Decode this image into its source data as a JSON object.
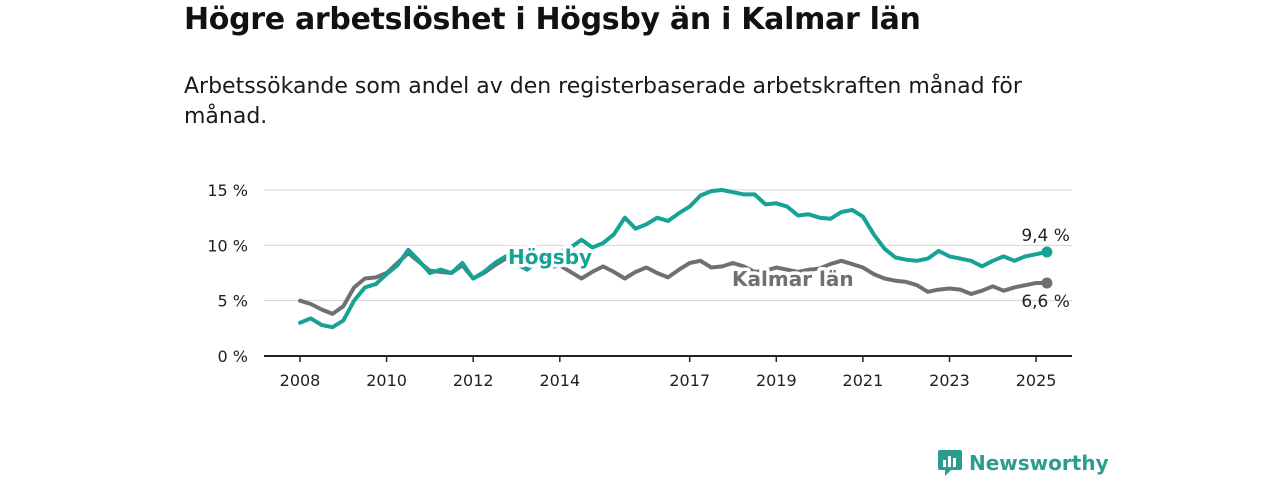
{
  "header": {
    "title": "Högre arbetslöshet i Högsby än i Kalmar län",
    "subtitle": "Arbetssökande som andel av den registerbaserade arbetskraften månad för månad."
  },
  "brand": {
    "label": "Newsworthy",
    "icon": "newsworthy-logo-icon",
    "color": "#2a9d8f"
  },
  "chart_data": {
    "type": "line",
    "xlabel": "",
    "ylabel": "",
    "ylim": [
      0,
      15
    ],
    "xlim": [
      "2008-01",
      "2025-12"
    ],
    "grid": true,
    "y_ticks": [
      "0 %",
      "5 %",
      "10 %",
      "15 %"
    ],
    "x_ticks": [
      "2008",
      "2010",
      "2012",
      "2014",
      "2017",
      "2019",
      "2021",
      "2023",
      "2025"
    ],
    "legend": "inline labels",
    "series": [
      {
        "name": "Högsby",
        "color": "#16a396",
        "end_label": "9,4 %",
        "points": [
          [
            "2008-01",
            3.0
          ],
          [
            "2008-04",
            3.4
          ],
          [
            "2008-07",
            2.8
          ],
          [
            "2008-10",
            2.6
          ],
          [
            "2009-01",
            3.2
          ],
          [
            "2009-04",
            5.0
          ],
          [
            "2009-07",
            6.2
          ],
          [
            "2009-10",
            6.5
          ],
          [
            "2010-01",
            7.4
          ],
          [
            "2010-04",
            8.2
          ],
          [
            "2010-07",
            9.6
          ],
          [
            "2010-10",
            8.6
          ],
          [
            "2011-01",
            7.5
          ],
          [
            "2011-04",
            7.8
          ],
          [
            "2011-07",
            7.5
          ],
          [
            "2011-10",
            8.4
          ],
          [
            "2012-01",
            7.0
          ],
          [
            "2012-04",
            7.6
          ],
          [
            "2012-07",
            8.4
          ],
          [
            "2012-10",
            9.0
          ],
          [
            "2013-01",
            8.3
          ],
          [
            "2013-04",
            7.8
          ],
          [
            "2013-07",
            8.7
          ],
          [
            "2013-10",
            9.0
          ],
          [
            "2014-01",
            9.4
          ],
          [
            "2014-04",
            9.8
          ],
          [
            "2014-07",
            10.5
          ],
          [
            "2014-10",
            9.8
          ],
          [
            "2015-01",
            10.2
          ],
          [
            "2015-04",
            11.0
          ],
          [
            "2015-07",
            12.5
          ],
          [
            "2015-10",
            11.5
          ],
          [
            "2016-01",
            11.9
          ],
          [
            "2016-04",
            12.5
          ],
          [
            "2016-07",
            12.2
          ],
          [
            "2016-10",
            12.9
          ],
          [
            "2017-01",
            13.5
          ],
          [
            "2017-04",
            14.5
          ],
          [
            "2017-07",
            14.9
          ],
          [
            "2017-10",
            15.0
          ],
          [
            "2018-01",
            14.8
          ],
          [
            "2018-04",
            14.6
          ],
          [
            "2018-07",
            14.6
          ],
          [
            "2018-10",
            13.7
          ],
          [
            "2019-01",
            13.8
          ],
          [
            "2019-04",
            13.5
          ],
          [
            "2019-07",
            12.7
          ],
          [
            "2019-10",
            12.8
          ],
          [
            "2020-01",
            12.5
          ],
          [
            "2020-04",
            12.4
          ],
          [
            "2020-07",
            13.0
          ],
          [
            "2020-10",
            13.2
          ],
          [
            "2021-01",
            12.6
          ],
          [
            "2021-04",
            11.0
          ],
          [
            "2021-07",
            9.7
          ],
          [
            "2021-10",
            8.9
          ],
          [
            "2022-01",
            8.7
          ],
          [
            "2022-04",
            8.6
          ],
          [
            "2022-07",
            8.8
          ],
          [
            "2022-10",
            9.5
          ],
          [
            "2023-01",
            9.0
          ],
          [
            "2023-04",
            8.8
          ],
          [
            "2023-07",
            8.6
          ],
          [
            "2023-10",
            8.1
          ],
          [
            "2024-01",
            8.6
          ],
          [
            "2024-04",
            9.0
          ],
          [
            "2024-07",
            8.6
          ],
          [
            "2024-10",
            9.0
          ],
          [
            "2025-01",
            9.2
          ],
          [
            "2025-04",
            9.4
          ]
        ]
      },
      {
        "name": "Kalmar län",
        "color": "#707070",
        "end_label": "6,6 %",
        "points": [
          [
            "2008-01",
            5.0
          ],
          [
            "2008-04",
            4.7
          ],
          [
            "2008-07",
            4.2
          ],
          [
            "2008-10",
            3.8
          ],
          [
            "2009-01",
            4.5
          ],
          [
            "2009-04",
            6.2
          ],
          [
            "2009-07",
            7.0
          ],
          [
            "2009-10",
            7.1
          ],
          [
            "2010-01",
            7.5
          ],
          [
            "2010-04",
            8.4
          ],
          [
            "2010-07",
            9.3
          ],
          [
            "2010-10",
            8.5
          ],
          [
            "2011-01",
            7.7
          ],
          [
            "2011-04",
            7.6
          ],
          [
            "2011-07",
            7.5
          ],
          [
            "2011-10",
            8.2
          ],
          [
            "2012-01",
            7.0
          ],
          [
            "2012-04",
            7.5
          ],
          [
            "2012-07",
            8.2
          ],
          [
            "2012-10",
            8.8
          ],
          [
            "2013-01",
            8.5
          ],
          [
            "2013-04",
            8.0
          ],
          [
            "2013-07",
            8.3
          ],
          [
            "2013-10",
            8.0
          ],
          [
            "2014-01",
            8.2
          ],
          [
            "2014-04",
            7.6
          ],
          [
            "2014-07",
            7.0
          ],
          [
            "2014-10",
            7.6
          ],
          [
            "2015-01",
            8.1
          ],
          [
            "2015-04",
            7.6
          ],
          [
            "2015-07",
            7.0
          ],
          [
            "2015-10",
            7.6
          ],
          [
            "2016-01",
            8.0
          ],
          [
            "2016-04",
            7.5
          ],
          [
            "2016-07",
            7.1
          ],
          [
            "2016-10",
            7.8
          ],
          [
            "2017-01",
            8.4
          ],
          [
            "2017-04",
            8.6
          ],
          [
            "2017-07",
            8.0
          ],
          [
            "2017-10",
            8.1
          ],
          [
            "2018-01",
            8.4
          ],
          [
            "2018-04",
            8.1
          ],
          [
            "2018-07",
            7.6
          ],
          [
            "2018-10",
            7.7
          ],
          [
            "2019-01",
            8.0
          ],
          [
            "2019-04",
            7.8
          ],
          [
            "2019-07",
            7.6
          ],
          [
            "2019-10",
            7.8
          ],
          [
            "2020-01",
            7.9
          ],
          [
            "2020-04",
            8.3
          ],
          [
            "2020-07",
            8.6
          ],
          [
            "2020-10",
            8.3
          ],
          [
            "2021-01",
            8.0
          ],
          [
            "2021-04",
            7.4
          ],
          [
            "2021-07",
            7.0
          ],
          [
            "2021-10",
            6.8
          ],
          [
            "2022-01",
            6.7
          ],
          [
            "2022-04",
            6.4
          ],
          [
            "2022-07",
            5.8
          ],
          [
            "2022-10",
            6.0
          ],
          [
            "2023-01",
            6.1
          ],
          [
            "2023-04",
            6.0
          ],
          [
            "2023-07",
            5.6
          ],
          [
            "2023-10",
            5.9
          ],
          [
            "2024-01",
            6.3
          ],
          [
            "2024-04",
            5.9
          ],
          [
            "2024-07",
            6.2
          ],
          [
            "2024-10",
            6.4
          ],
          [
            "2025-01",
            6.6
          ],
          [
            "2025-04",
            6.6
          ]
        ]
      }
    ]
  }
}
